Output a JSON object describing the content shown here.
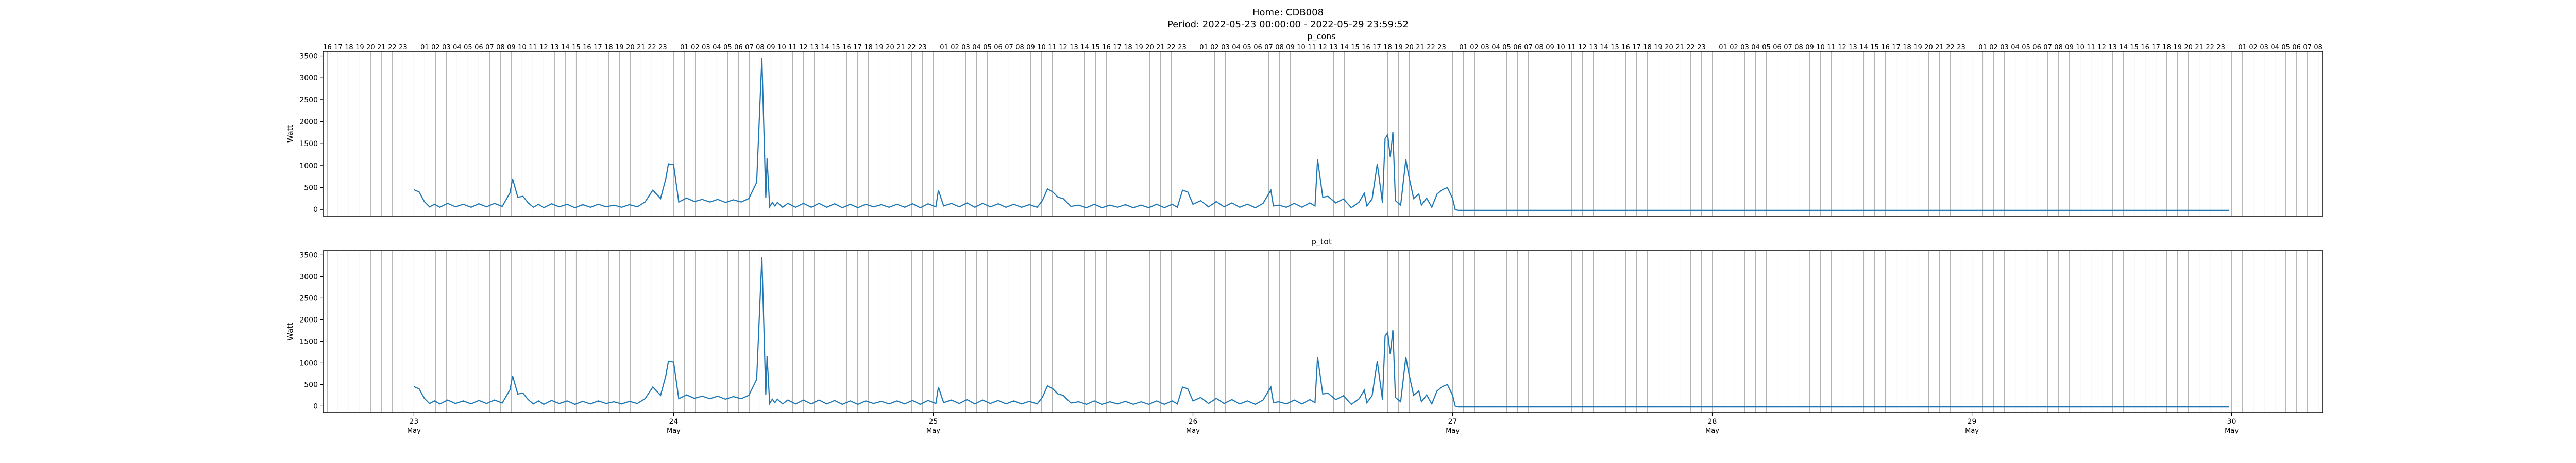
{
  "header": {
    "title": "Home: CDB008",
    "period": "Period: 2022-05-23 00:00:00 - 2022-05-29 23:59:52"
  },
  "colors": {
    "line": "#1f77b4",
    "grid": "#b0b0b0",
    "axis": "#000000"
  },
  "chart_data": [
    {
      "type": "line",
      "title": "p_cons",
      "ylabel": "Watt",
      "ylim": [
        -150,
        3600
      ],
      "yticks": [
        0,
        500,
        1000,
        1500,
        2000,
        2500,
        3000,
        3500
      ],
      "xlim_days": [
        22.65,
        30.35
      ],
      "grid": "vertical hourly lines",
      "top_hour_labels": [
        "16",
        "17",
        "18",
        "19",
        "20",
        "21",
        "22",
        "23",
        "01",
        "02",
        "03",
        "04",
        "05",
        "06",
        "07",
        "08",
        "09",
        "10",
        "11",
        "12",
        "13",
        "14",
        "15",
        "16",
        "17",
        "18",
        "19",
        "20",
        "21",
        "22",
        "23"
      ],
      "series": [
        {
          "x_days": [
            23.0,
            23.02,
            23.04,
            23.06,
            23.08,
            23.1,
            23.13,
            23.16,
            23.19,
            23.22,
            23.25,
            23.28,
            23.31,
            23.34,
            23.37,
            23.38,
            23.4,
            23.42,
            23.44,
            23.46,
            23.48,
            23.5,
            23.53,
            23.56,
            23.59,
            23.62,
            23.65,
            23.68,
            23.71,
            23.74,
            23.77,
            23.8,
            23.83,
            23.86,
            23.89,
            23.92,
            23.95,
            23.97,
            23.98,
            24.0,
            24.02,
            24.05,
            24.08,
            24.11,
            24.14,
            24.17,
            24.2,
            24.23,
            24.26,
            24.29,
            24.32,
            24.34,
            24.355,
            24.36,
            24.37,
            24.38,
            24.39,
            24.4,
            24.42,
            24.44,
            24.47,
            24.5,
            24.53,
            24.56,
            24.59,
            24.62,
            24.65,
            24.68,
            24.71,
            24.74,
            24.77,
            24.8,
            24.83,
            24.86,
            24.89,
            24.92,
            24.95,
            24.98,
            25.01,
            25.02,
            25.04,
            25.07,
            25.1,
            25.13,
            25.16,
            25.19,
            25.22,
            25.25,
            25.28,
            25.31,
            25.34,
            25.37,
            25.4,
            25.42,
            25.44,
            25.46,
            25.48,
            25.5,
            25.53,
            25.56,
            25.59,
            25.62,
            25.65,
            25.68,
            25.71,
            25.74,
            25.77,
            25.8,
            25.83,
            25.86,
            25.89,
            25.92,
            25.94,
            25.96,
            25.98,
            26.0,
            26.03,
            26.06,
            26.09,
            26.12,
            26.15,
            26.18,
            26.21,
            26.24,
            26.27,
            26.3,
            26.31,
            26.33,
            26.36,
            26.39,
            26.42,
            26.45,
            26.47,
            26.48,
            26.5,
            26.52,
            26.55,
            26.58,
            26.61,
            26.64,
            26.66,
            26.67,
            26.69,
            26.71,
            26.73,
            26.74,
            26.75,
            26.76,
            26.77,
            26.78,
            26.8,
            26.82,
            26.83,
            26.85,
            26.87,
            26.88,
            26.9,
            26.92,
            26.94,
            26.96,
            26.98,
            27.0,
            27.01,
            27.02,
            27.05,
            27.5,
            28.0,
            28.5,
            29.0,
            29.5,
            29.99
          ],
          "values": [
            450,
            400,
            180,
            60,
            120,
            50,
            140,
            60,
            120,
            50,
            130,
            60,
            140,
            70,
            380,
            700,
            280,
            300,
            150,
            50,
            120,
            40,
            130,
            60,
            120,
            40,
            110,
            50,
            120,
            60,
            100,
            50,
            110,
            60,
            170,
            440,
            250,
            700,
            1040,
            1020,
            170,
            260,
            180,
            230,
            170,
            230,
            160,
            220,
            170,
            250,
            620,
            3450,
            260,
            1160,
            60,
            160,
            80,
            160,
            50,
            140,
            50,
            140,
            50,
            140,
            50,
            130,
            40,
            120,
            40,
            120,
            60,
            110,
            50,
            120,
            50,
            130,
            40,
            130,
            60,
            440,
            80,
            140,
            60,
            150,
            50,
            140,
            60,
            130,
            50,
            120,
            50,
            110,
            50,
            200,
            470,
            400,
            280,
            250,
            70,
            100,
            40,
            120,
            40,
            100,
            50,
            110,
            40,
            100,
            40,
            120,
            40,
            120,
            50,
            440,
            400,
            120,
            200,
            60,
            180,
            60,
            150,
            50,
            120,
            40,
            140,
            440,
            80,
            100,
            50,
            140,
            50,
            150,
            80,
            1140,
            280,
            300,
            150,
            240,
            40,
            170,
            370,
            80,
            240,
            1040,
            150,
            1620,
            1700,
            1200,
            1760,
            200,
            100,
            1140,
            800,
            250,
            350,
            100,
            260,
            50,
            350,
            450,
            500,
            250,
            0,
            -20,
            -20,
            -20,
            -20,
            -20,
            -20,
            -20,
            -20
          ]
        }
      ]
    },
    {
      "type": "line",
      "title": "p_tot",
      "ylabel": "Watt",
      "ylim": [
        -150,
        3600
      ],
      "yticks": [
        0,
        500,
        1000,
        1500,
        2000,
        2500,
        3000,
        3500
      ],
      "xlim_days": [
        22.65,
        30.35
      ],
      "grid": "vertical hourly lines",
      "x_ticks_days": [
        23,
        24,
        25,
        26,
        27,
        28,
        29,
        30
      ],
      "x_tick_labels": [
        "23",
        "24",
        "25",
        "26",
        "27",
        "28",
        "29",
        "30"
      ],
      "x_tick_sublabel": "May",
      "series": [
        {
          "x_days": [
            23.0,
            23.02,
            23.04,
            23.06,
            23.08,
            23.1,
            23.13,
            23.16,
            23.19,
            23.22,
            23.25,
            23.28,
            23.31,
            23.34,
            23.37,
            23.38,
            23.4,
            23.42,
            23.44,
            23.46,
            23.48,
            23.5,
            23.53,
            23.56,
            23.59,
            23.62,
            23.65,
            23.68,
            23.71,
            23.74,
            23.77,
            23.8,
            23.83,
            23.86,
            23.89,
            23.92,
            23.95,
            23.97,
            23.98,
            24.0,
            24.02,
            24.05,
            24.08,
            24.11,
            24.14,
            24.17,
            24.2,
            24.23,
            24.26,
            24.29,
            24.32,
            24.34,
            24.355,
            24.36,
            24.37,
            24.38,
            24.39,
            24.4,
            24.42,
            24.44,
            24.47,
            24.5,
            24.53,
            24.56,
            24.59,
            24.62,
            24.65,
            24.68,
            24.71,
            24.74,
            24.77,
            24.8,
            24.83,
            24.86,
            24.89,
            24.92,
            24.95,
            24.98,
            25.01,
            25.02,
            25.04,
            25.07,
            25.1,
            25.13,
            25.16,
            25.19,
            25.22,
            25.25,
            25.28,
            25.31,
            25.34,
            25.37,
            25.4,
            25.42,
            25.44,
            25.46,
            25.48,
            25.5,
            25.53,
            25.56,
            25.59,
            25.62,
            25.65,
            25.68,
            25.71,
            25.74,
            25.77,
            25.8,
            25.83,
            25.86,
            25.89,
            25.92,
            25.94,
            25.96,
            25.98,
            26.0,
            26.03,
            26.06,
            26.09,
            26.12,
            26.15,
            26.18,
            26.21,
            26.24,
            26.27,
            26.3,
            26.31,
            26.33,
            26.36,
            26.39,
            26.42,
            26.45,
            26.47,
            26.48,
            26.5,
            26.52,
            26.55,
            26.58,
            26.61,
            26.64,
            26.66,
            26.67,
            26.69,
            26.71,
            26.73,
            26.74,
            26.75,
            26.76,
            26.77,
            26.78,
            26.8,
            26.82,
            26.83,
            26.85,
            26.87,
            26.88,
            26.9,
            26.92,
            26.94,
            26.96,
            26.98,
            27.0,
            27.01,
            27.02,
            27.05,
            27.5,
            28.0,
            28.5,
            29.0,
            29.5,
            29.99
          ],
          "values": [
            450,
            400,
            180,
            60,
            120,
            50,
            140,
            60,
            120,
            50,
            130,
            60,
            140,
            70,
            380,
            700,
            280,
            300,
            150,
            50,
            120,
            40,
            130,
            60,
            120,
            40,
            110,
            50,
            120,
            60,
            100,
            50,
            110,
            60,
            170,
            440,
            250,
            700,
            1040,
            1020,
            170,
            260,
            180,
            230,
            170,
            230,
            160,
            220,
            170,
            250,
            620,
            3450,
            260,
            1160,
            60,
            160,
            80,
            160,
            50,
            140,
            50,
            140,
            50,
            140,
            50,
            130,
            40,
            120,
            40,
            120,
            60,
            110,
            50,
            120,
            50,
            130,
            40,
            130,
            60,
            440,
            80,
            140,
            60,
            150,
            50,
            140,
            60,
            130,
            50,
            120,
            50,
            110,
            50,
            200,
            470,
            400,
            280,
            250,
            70,
            100,
            40,
            120,
            40,
            100,
            50,
            110,
            40,
            100,
            40,
            120,
            40,
            120,
            50,
            440,
            400,
            120,
            200,
            60,
            180,
            60,
            150,
            50,
            120,
            40,
            140,
            440,
            80,
            100,
            50,
            140,
            50,
            150,
            80,
            1140,
            280,
            300,
            150,
            240,
            40,
            170,
            370,
            80,
            240,
            1040,
            150,
            1620,
            1700,
            1200,
            1760,
            200,
            100,
            1140,
            800,
            250,
            350,
            100,
            260,
            50,
            350,
            450,
            500,
            250,
            0,
            -20,
            -20,
            -20,
            -20,
            -20,
            -20,
            -20,
            -20
          ]
        }
      ]
    }
  ]
}
